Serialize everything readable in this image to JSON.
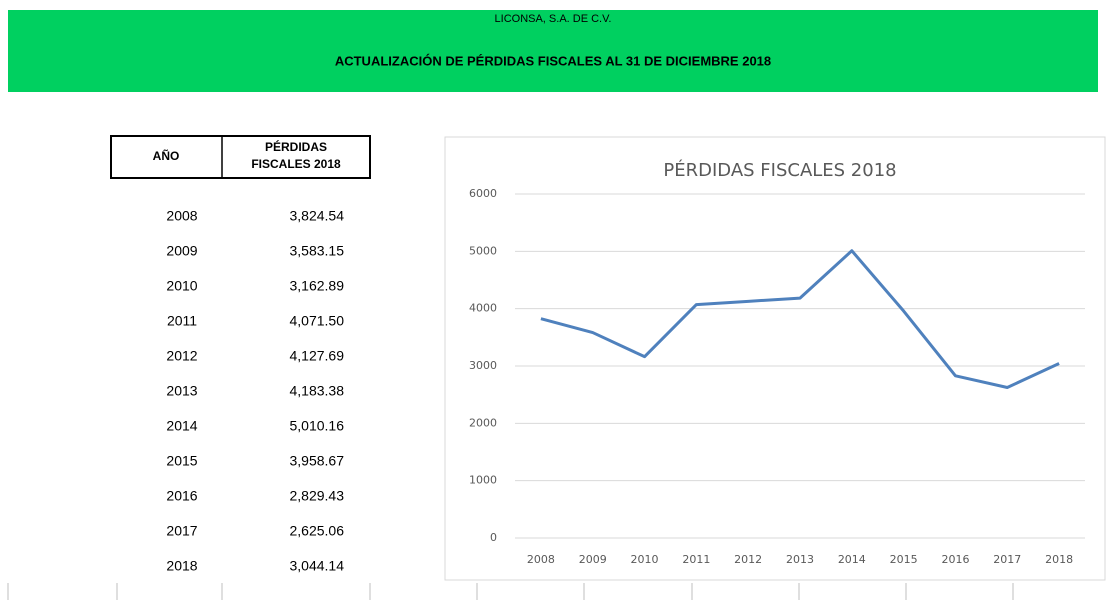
{
  "header": {
    "company": "LICONSA, S.A. DE C.V.",
    "title": "ACTUALIZACIÓN DE PÉRDIDAS FISCALES AL 31 DE DICIEMBRE 2018"
  },
  "table": {
    "columns": [
      "AÑO",
      "PÉRDIDAS FISCALES 2018"
    ],
    "rows": [
      [
        "2008",
        "3,824.54"
      ],
      [
        "2009",
        "3,583.15"
      ],
      [
        "2010",
        "3,162.89"
      ],
      [
        "2011",
        "4,071.50"
      ],
      [
        "2012",
        "4,127.69"
      ],
      [
        "2013",
        "4,183.38"
      ],
      [
        "2014",
        "5,010.16"
      ],
      [
        "2015",
        "3,958.67"
      ],
      [
        "2016",
        "2,829.43"
      ],
      [
        "2017",
        "2,625.06"
      ],
      [
        "2018",
        "3,044.14"
      ]
    ]
  },
  "chart_data": {
    "type": "line",
    "title": "PÉRDIDAS FISCALES 2018",
    "categories": [
      "2008",
      "2009",
      "2010",
      "2011",
      "2012",
      "2013",
      "2014",
      "2015",
      "2016",
      "2017",
      "2018"
    ],
    "values": [
      3824.54,
      3583.15,
      3162.89,
      4071.5,
      4127.69,
      4183.38,
      5010.16,
      3958.67,
      2829.43,
      2625.06,
      3044.14
    ],
    "color": "#4f81bd",
    "ylim": [
      0,
      6000
    ],
    "yticks": [
      0,
      1000,
      2000,
      3000,
      4000,
      5000,
      6000
    ],
    "grid": true
  }
}
